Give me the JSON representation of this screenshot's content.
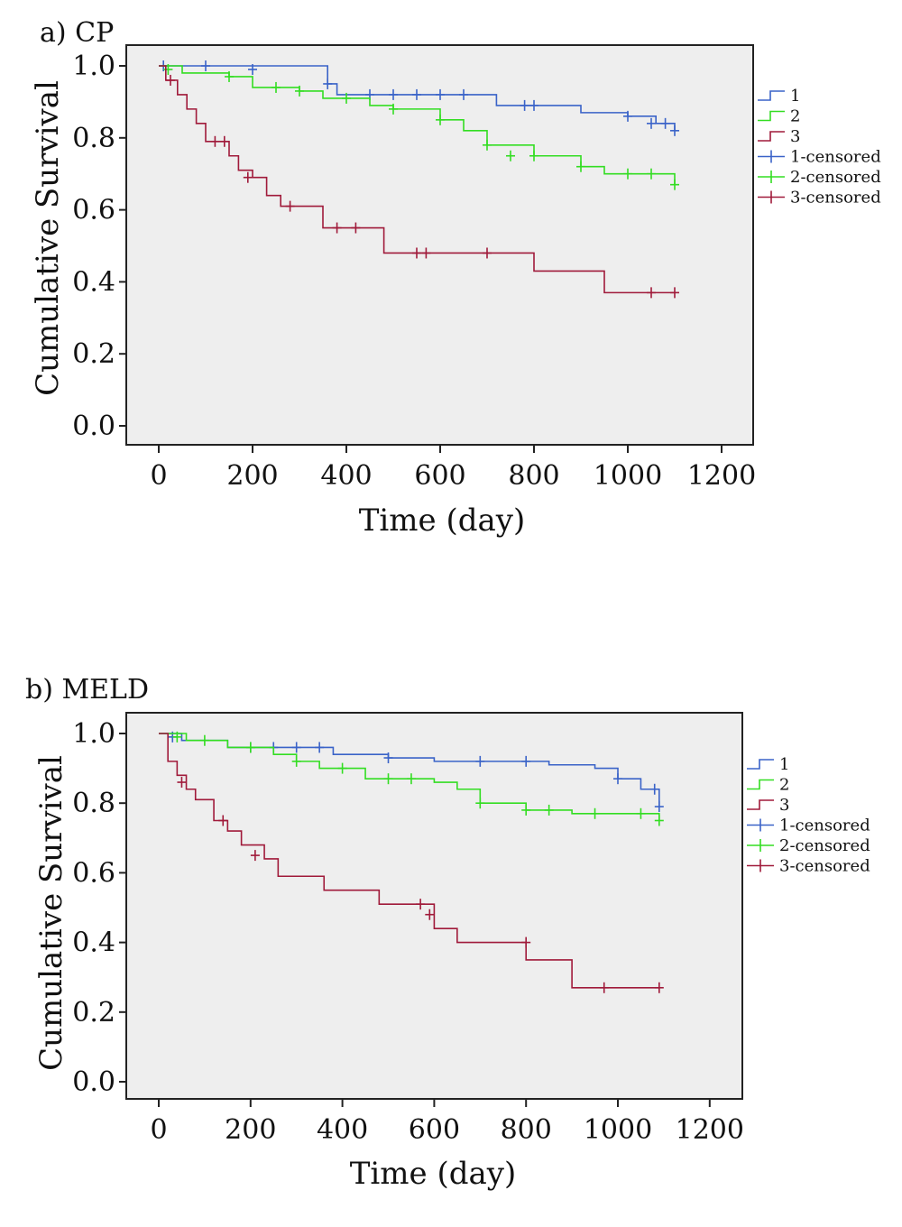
{
  "chart_data": [
    {
      "type": "line",
      "title": "a) CP",
      "xlabel": "Time (day)",
      "ylabel": "Cumulative Survival",
      "xlim": [
        0,
        1200
      ],
      "ylim": [
        0,
        1.0
      ],
      "x_ticks": [
        "0",
        "200",
        "400",
        "600",
        "800",
        "1000",
        "1200"
      ],
      "y_ticks": [
        "0.0",
        "0.2",
        "0.4",
        "0.6",
        "0.8",
        "1.0"
      ],
      "legend_position": "right",
      "legend": [
        "1",
        "2",
        "3",
        "1-censored",
        "2-censored",
        "3-censored"
      ],
      "series": [
        {
          "name": "1",
          "color": "#3a63c8",
          "steps": [
            [
              0,
              1.0
            ],
            [
              360,
              0.95
            ],
            [
              380,
              0.92
            ],
            [
              720,
              0.89
            ],
            [
              900,
              0.87
            ],
            [
              1000,
              0.86
            ],
            [
              1060,
              0.84
            ],
            [
              1100,
              0.82
            ]
          ],
          "censored": [
            [
              10,
              1.0
            ],
            [
              100,
              1.0
            ],
            [
              200,
              0.99
            ],
            [
              360,
              0.95
            ],
            [
              450,
              0.92
            ],
            [
              500,
              0.92
            ],
            [
              550,
              0.92
            ],
            [
              600,
              0.92
            ],
            [
              650,
              0.92
            ],
            [
              780,
              0.89
            ],
            [
              800,
              0.89
            ],
            [
              1000,
              0.86
            ],
            [
              1050,
              0.84
            ],
            [
              1080,
              0.84
            ],
            [
              1100,
              0.82
            ]
          ]
        },
        {
          "name": "2",
          "color": "#33dd22",
          "steps": [
            [
              0,
              1.0
            ],
            [
              50,
              0.98
            ],
            [
              150,
              0.97
            ],
            [
              200,
              0.94
            ],
            [
              300,
              0.93
            ],
            [
              350,
              0.91
            ],
            [
              450,
              0.89
            ],
            [
              500,
              0.88
            ],
            [
              600,
              0.85
            ],
            [
              650,
              0.82
            ],
            [
              700,
              0.78
            ],
            [
              800,
              0.75
            ],
            [
              900,
              0.72
            ],
            [
              950,
              0.7
            ],
            [
              1100,
              0.67
            ]
          ],
          "censored": [
            [
              20,
              0.99
            ],
            [
              150,
              0.97
            ],
            [
              250,
              0.94
            ],
            [
              300,
              0.93
            ],
            [
              400,
              0.91
            ],
            [
              500,
              0.88
            ],
            [
              600,
              0.85
            ],
            [
              700,
              0.78
            ],
            [
              750,
              0.75
            ],
            [
              800,
              0.75
            ],
            [
              900,
              0.72
            ],
            [
              1000,
              0.7
            ],
            [
              1050,
              0.7
            ],
            [
              1100,
              0.67
            ]
          ]
        },
        {
          "name": "3",
          "color": "#a01a3a",
          "steps": [
            [
              0,
              1.0
            ],
            [
              15,
              0.96
            ],
            [
              40,
              0.92
            ],
            [
              60,
              0.88
            ],
            [
              80,
              0.84
            ],
            [
              100,
              0.79
            ],
            [
              150,
              0.75
            ],
            [
              170,
              0.71
            ],
            [
              200,
              0.69
            ],
            [
              230,
              0.64
            ],
            [
              260,
              0.61
            ],
            [
              350,
              0.55
            ],
            [
              480,
              0.48
            ],
            [
              800,
              0.43
            ],
            [
              950,
              0.37
            ],
            [
              1100,
              0.37
            ]
          ],
          "censored": [
            [
              25,
              0.96
            ],
            [
              120,
              0.79
            ],
            [
              140,
              0.79
            ],
            [
              190,
              0.69
            ],
            [
              280,
              0.61
            ],
            [
              380,
              0.55
            ],
            [
              420,
              0.55
            ],
            [
              550,
              0.48
            ],
            [
              570,
              0.48
            ],
            [
              700,
              0.48
            ],
            [
              1050,
              0.37
            ],
            [
              1100,
              0.37
            ]
          ]
        }
      ]
    },
    {
      "type": "line",
      "title": "b) MELD",
      "xlabel": "Time (day)",
      "ylabel": "Cumulative Survival",
      "xlim": [
        0,
        1200
      ],
      "ylim": [
        0,
        1.0
      ],
      "x_ticks": [
        "0",
        "200",
        "400",
        "600",
        "800",
        "1000",
        "1200"
      ],
      "y_ticks": [
        "0.0",
        "0.2",
        "0.4",
        "0.6",
        "0.8",
        "1.0"
      ],
      "legend_position": "right",
      "legend": [
        "1",
        "2",
        "3",
        "1-censored",
        "2-censored",
        "3-censored"
      ],
      "series": [
        {
          "name": "1",
          "color": "#3a63c8",
          "steps": [
            [
              0,
              1.0
            ],
            [
              50,
              0.98
            ],
            [
              150,
              0.96
            ],
            [
              380,
              0.94
            ],
            [
              500,
              0.93
            ],
            [
              600,
              0.92
            ],
            [
              850,
              0.91
            ],
            [
              950,
              0.9
            ],
            [
              1000,
              0.87
            ],
            [
              1050,
              0.84
            ],
            [
              1090,
              0.79
            ]
          ],
          "censored": [
            [
              30,
              0.99
            ],
            [
              200,
              0.96
            ],
            [
              250,
              0.96
            ],
            [
              300,
              0.96
            ],
            [
              350,
              0.96
            ],
            [
              500,
              0.93
            ],
            [
              700,
              0.92
            ],
            [
              800,
              0.92
            ],
            [
              1000,
              0.87
            ],
            [
              1080,
              0.84
            ],
            [
              1090,
              0.79
            ]
          ]
        },
        {
          "name": "2",
          "color": "#33dd22",
          "steps": [
            [
              0,
              1.0
            ],
            [
              60,
              0.98
            ],
            [
              150,
              0.96
            ],
            [
              250,
              0.94
            ],
            [
              300,
              0.92
            ],
            [
              350,
              0.9
            ],
            [
              450,
              0.87
            ],
            [
              600,
              0.86
            ],
            [
              650,
              0.84
            ],
            [
              700,
              0.8
            ],
            [
              800,
              0.78
            ],
            [
              900,
              0.77
            ],
            [
              1090,
              0.75
            ]
          ],
          "censored": [
            [
              40,
              0.99
            ],
            [
              100,
              0.98
            ],
            [
              200,
              0.96
            ],
            [
              300,
              0.92
            ],
            [
              400,
              0.9
            ],
            [
              500,
              0.87
            ],
            [
              550,
              0.87
            ],
            [
              700,
              0.8
            ],
            [
              800,
              0.78
            ],
            [
              850,
              0.78
            ],
            [
              950,
              0.77
            ],
            [
              1050,
              0.77
            ],
            [
              1090,
              0.75
            ]
          ]
        },
        {
          "name": "3",
          "color": "#a01a3a",
          "steps": [
            [
              0,
              1.0
            ],
            [
              20,
              0.92
            ],
            [
              40,
              0.88
            ],
            [
              60,
              0.84
            ],
            [
              80,
              0.81
            ],
            [
              120,
              0.75
            ],
            [
              150,
              0.72
            ],
            [
              180,
              0.68
            ],
            [
              230,
              0.64
            ],
            [
              260,
              0.59
            ],
            [
              360,
              0.55
            ],
            [
              480,
              0.51
            ],
            [
              600,
              0.44
            ],
            [
              650,
              0.4
            ],
            [
              800,
              0.35
            ],
            [
              900,
              0.27
            ],
            [
              1090,
              0.27
            ]
          ],
          "censored": [
            [
              50,
              0.86
            ],
            [
              140,
              0.75
            ],
            [
              210,
              0.65
            ],
            [
              570,
              0.51
            ],
            [
              590,
              0.48
            ],
            [
              800,
              0.4
            ],
            [
              970,
              0.27
            ],
            [
              1090,
              0.27
            ]
          ]
        }
      ]
    }
  ]
}
